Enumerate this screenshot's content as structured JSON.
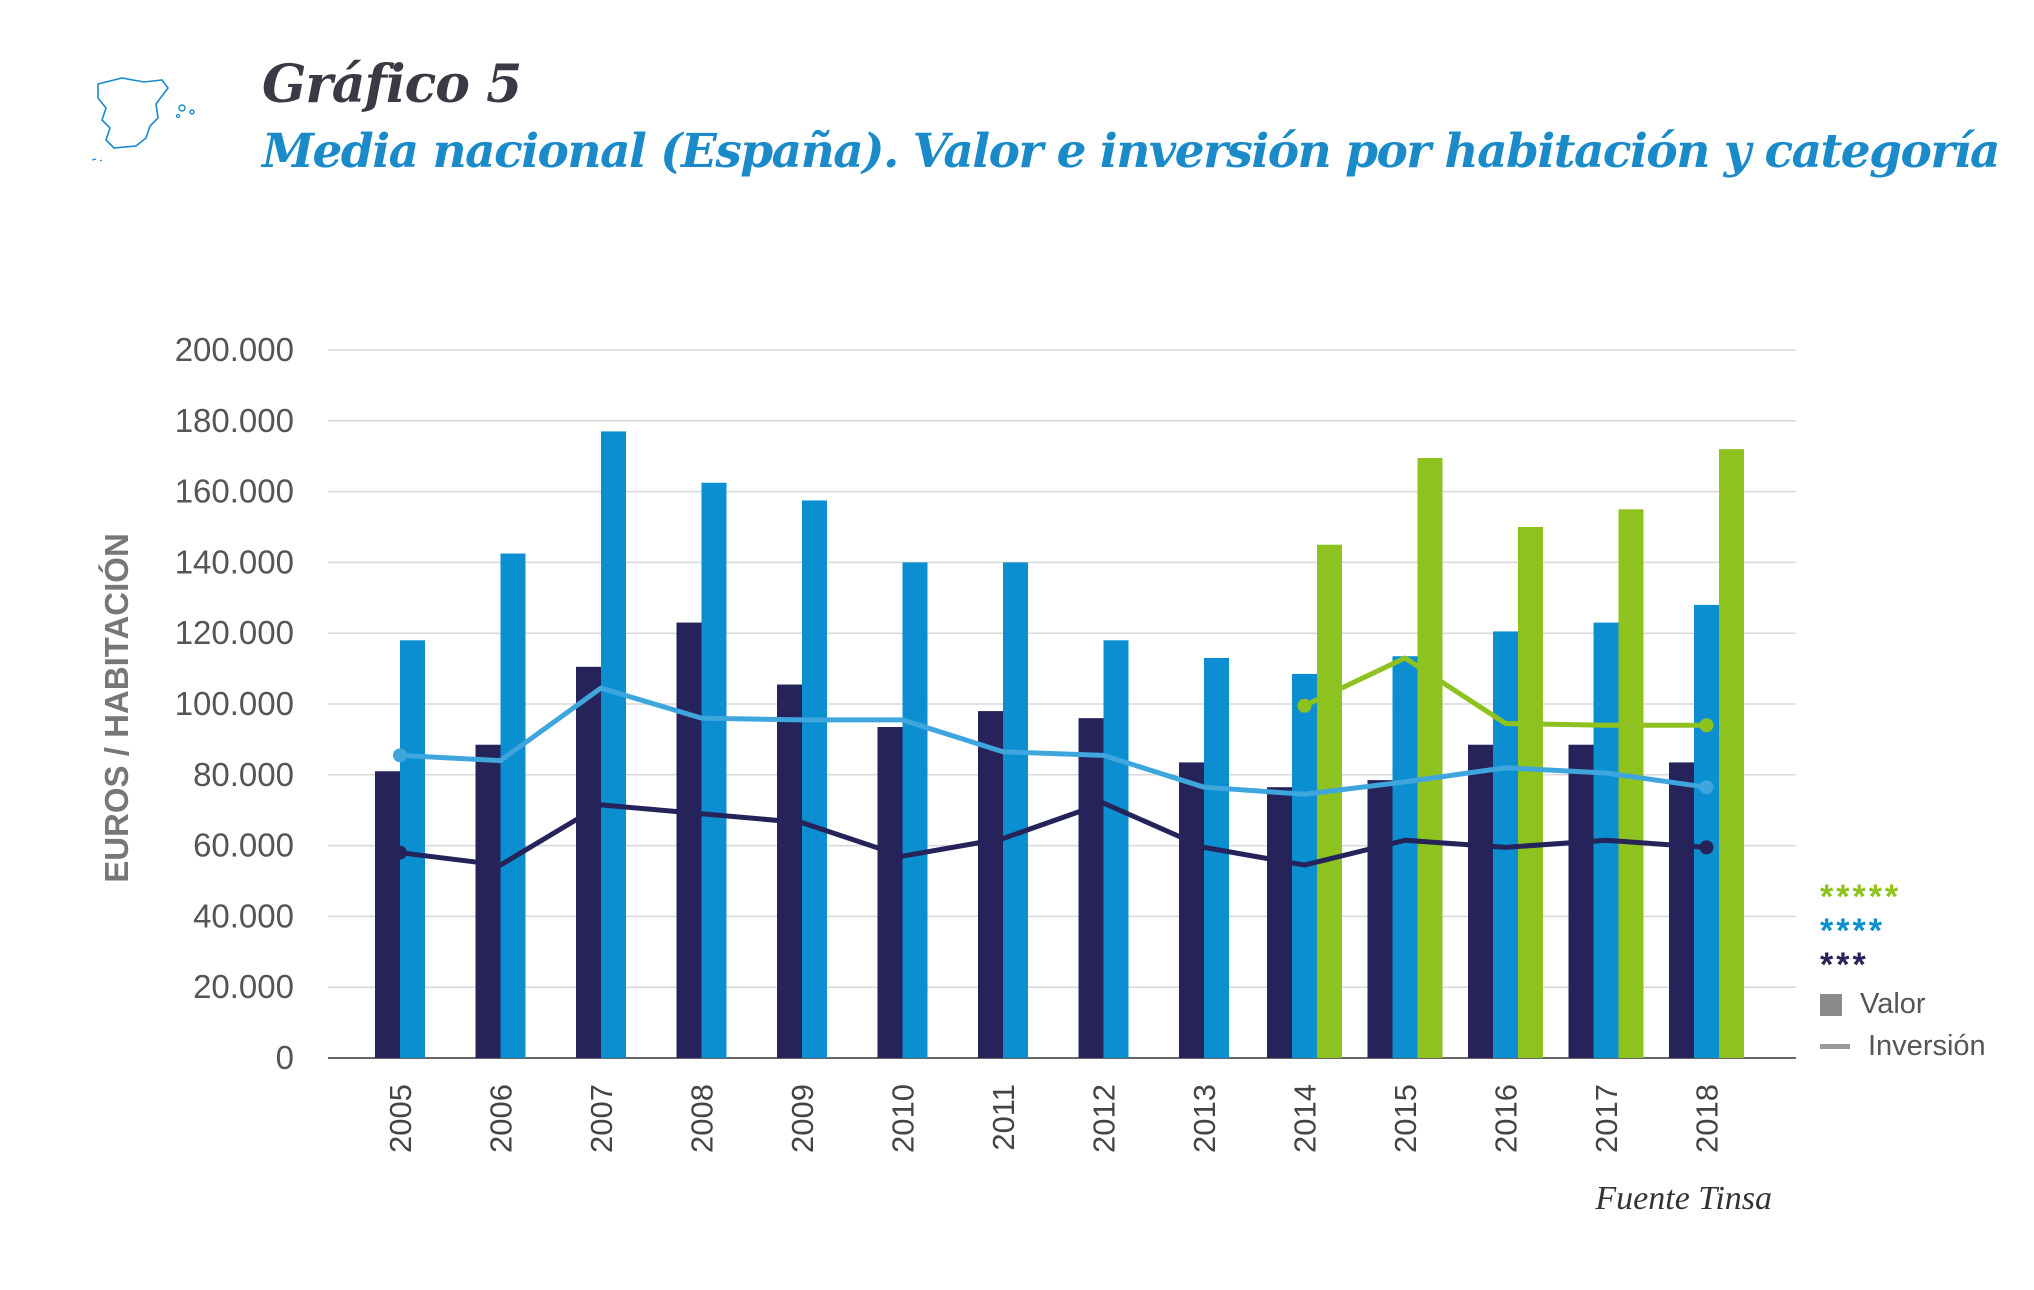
{
  "header": {
    "chart_label": "Gráfico 5",
    "title": "Media nacional (España). Valor e inversión por habitación y categoría"
  },
  "footer": {
    "source": "Fuente Tinsa"
  },
  "icons": {
    "map": "spain-map-icon"
  },
  "colors": {
    "three_star": "#26235a",
    "four_star": "#0b8fd0",
    "four_star_line": "#3ea6dd",
    "five_star": "#8dc21f",
    "grid": "#d8d8d8",
    "axis": "#666666"
  },
  "legend": {
    "five_star": "*****",
    "four_star": "****",
    "three_star": "***",
    "valor": "Valor",
    "inversion": "Inversión"
  },
  "chart_data": {
    "type": "bar",
    "ylabel": "EUROS / HABITACIÓN",
    "xlabel": "",
    "ylim": [
      0,
      200000
    ],
    "yticks": [
      "0",
      "20.000",
      "40.000",
      "60.000",
      "80.000",
      "100.000",
      "120.000",
      "140.000",
      "160.000",
      "180.000",
      "200.000"
    ],
    "grid": true,
    "categories": [
      "2005",
      "2006",
      "2007",
      "2008",
      "2009",
      "2010",
      "2011",
      "2012",
      "2013",
      "2014",
      "2015",
      "2016",
      "2017",
      "2018"
    ],
    "bar_series": [
      {
        "name": "*** Valor",
        "color_key": "three_star",
        "values": [
          81000,
          88500,
          110500,
          123000,
          105500,
          93500,
          98000,
          96000,
          83500,
          76500,
          78500,
          88500,
          88500,
          83500
        ]
      },
      {
        "name": "**** Valor",
        "color_key": "four_star",
        "values": [
          118000,
          142500,
          177000,
          162500,
          157500,
          140000,
          140000,
          118000,
          113000,
          108500,
          113500,
          120500,
          123000,
          128000
        ]
      },
      {
        "name": "***** Valor",
        "color_key": "five_star",
        "values": [
          null,
          null,
          null,
          null,
          null,
          null,
          null,
          null,
          null,
          145000,
          169500,
          150000,
          155000,
          172000
        ]
      }
    ],
    "line_series": [
      {
        "name": "*** Inversión",
        "color_key": "three_star",
        "values": [
          58000,
          54500,
          71500,
          69000,
          66500,
          57000,
          62000,
          72000,
          59500,
          54500,
          61500,
          59500,
          61500,
          59500
        ]
      },
      {
        "name": "**** Inversión",
        "color_key": "four_star_line",
        "values": [
          85500,
          84000,
          104500,
          96000,
          95500,
          95500,
          86500,
          85500,
          76500,
          74500,
          78000,
          82000,
          80500,
          76500
        ]
      },
      {
        "name": "***** Inversión",
        "color_key": "five_star",
        "values": [
          null,
          null,
          null,
          null,
          null,
          null,
          null,
          null,
          null,
          99500,
          113000,
          94500,
          94000,
          94000
        ]
      }
    ],
    "legend_position": "right"
  }
}
